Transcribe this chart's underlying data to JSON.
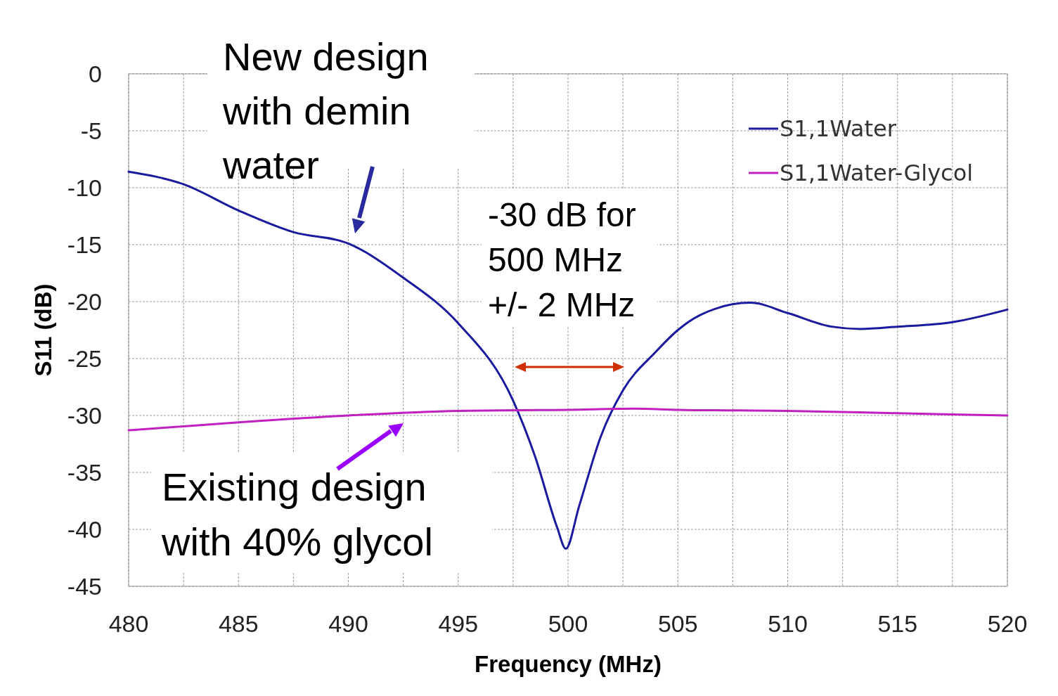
{
  "chart_data": {
    "type": "line",
    "xlabel": "Frequency (MHz)",
    "ylabel": "S11 (dB)",
    "xlim": [
      480,
      520
    ],
    "ylim": [
      -45,
      0
    ],
    "xticks": [
      480,
      {
        "value": 482.5,
        "label": null
      },
      485,
      {
        "value": 487.5,
        "label": null
      },
      490,
      {
        "value": 492.5,
        "label": null
      },
      495,
      {
        "value": 497.5,
        "label": null
      },
      500,
      {
        "value": 502.5,
        "label": null
      },
      505,
      {
        "value": 507.5,
        "label": null
      },
      510,
      {
        "value": 512.5,
        "label": null
      },
      515,
      {
        "value": 517.5,
        "label": null
      },
      520
    ],
    "yticks": [
      0,
      -5,
      -10,
      -15,
      -20,
      -25,
      -30,
      -35,
      -40,
      -45
    ],
    "grid": true,
    "legend": "top right",
    "line_style": "solid",
    "marker": "none",
    "series": [
      {
        "name": "S1,1Water",
        "color": "#1a1aa0",
        "x": [
          480,
          482.5,
          485,
          487.5,
          490,
          492.5,
          495,
          497.5,
          498.5,
          499.5,
          499.9,
          500.5,
          501.5,
          502.5,
          504,
          505,
          506,
          508.3,
          510,
          512,
          513.3,
          515,
          517.5,
          520
        ],
        "values": [
          -8.6,
          -9.7,
          -12,
          -13.9,
          -14.9,
          -17.9,
          -21.9,
          -28.7,
          -33.6,
          -39.8,
          -41.7,
          -38,
          -31.8,
          -27.8,
          -24.4,
          -22.5,
          -21.2,
          -20.1,
          -21,
          -22.2,
          -22.4,
          -22.2,
          -21.8,
          -20.7
        ]
      },
      {
        "name": "S1,1Water-Glycol",
        "color": "#c020c0",
        "x": [
          480,
          485,
          490,
          495,
          500,
          503,
          505,
          510,
          515,
          520
        ],
        "values": [
          -31.3,
          -30.6,
          -30,
          -29.6,
          -29.5,
          -29.4,
          -29.5,
          -29.6,
          -29.8,
          -30
        ]
      }
    ],
    "annotations": [
      "New design\nwith demin\nwater",
      "-30 dB for\n500 MHz\n+/- 2 MHz",
      "Existing design\nwith 40% glycol"
    ]
  }
}
